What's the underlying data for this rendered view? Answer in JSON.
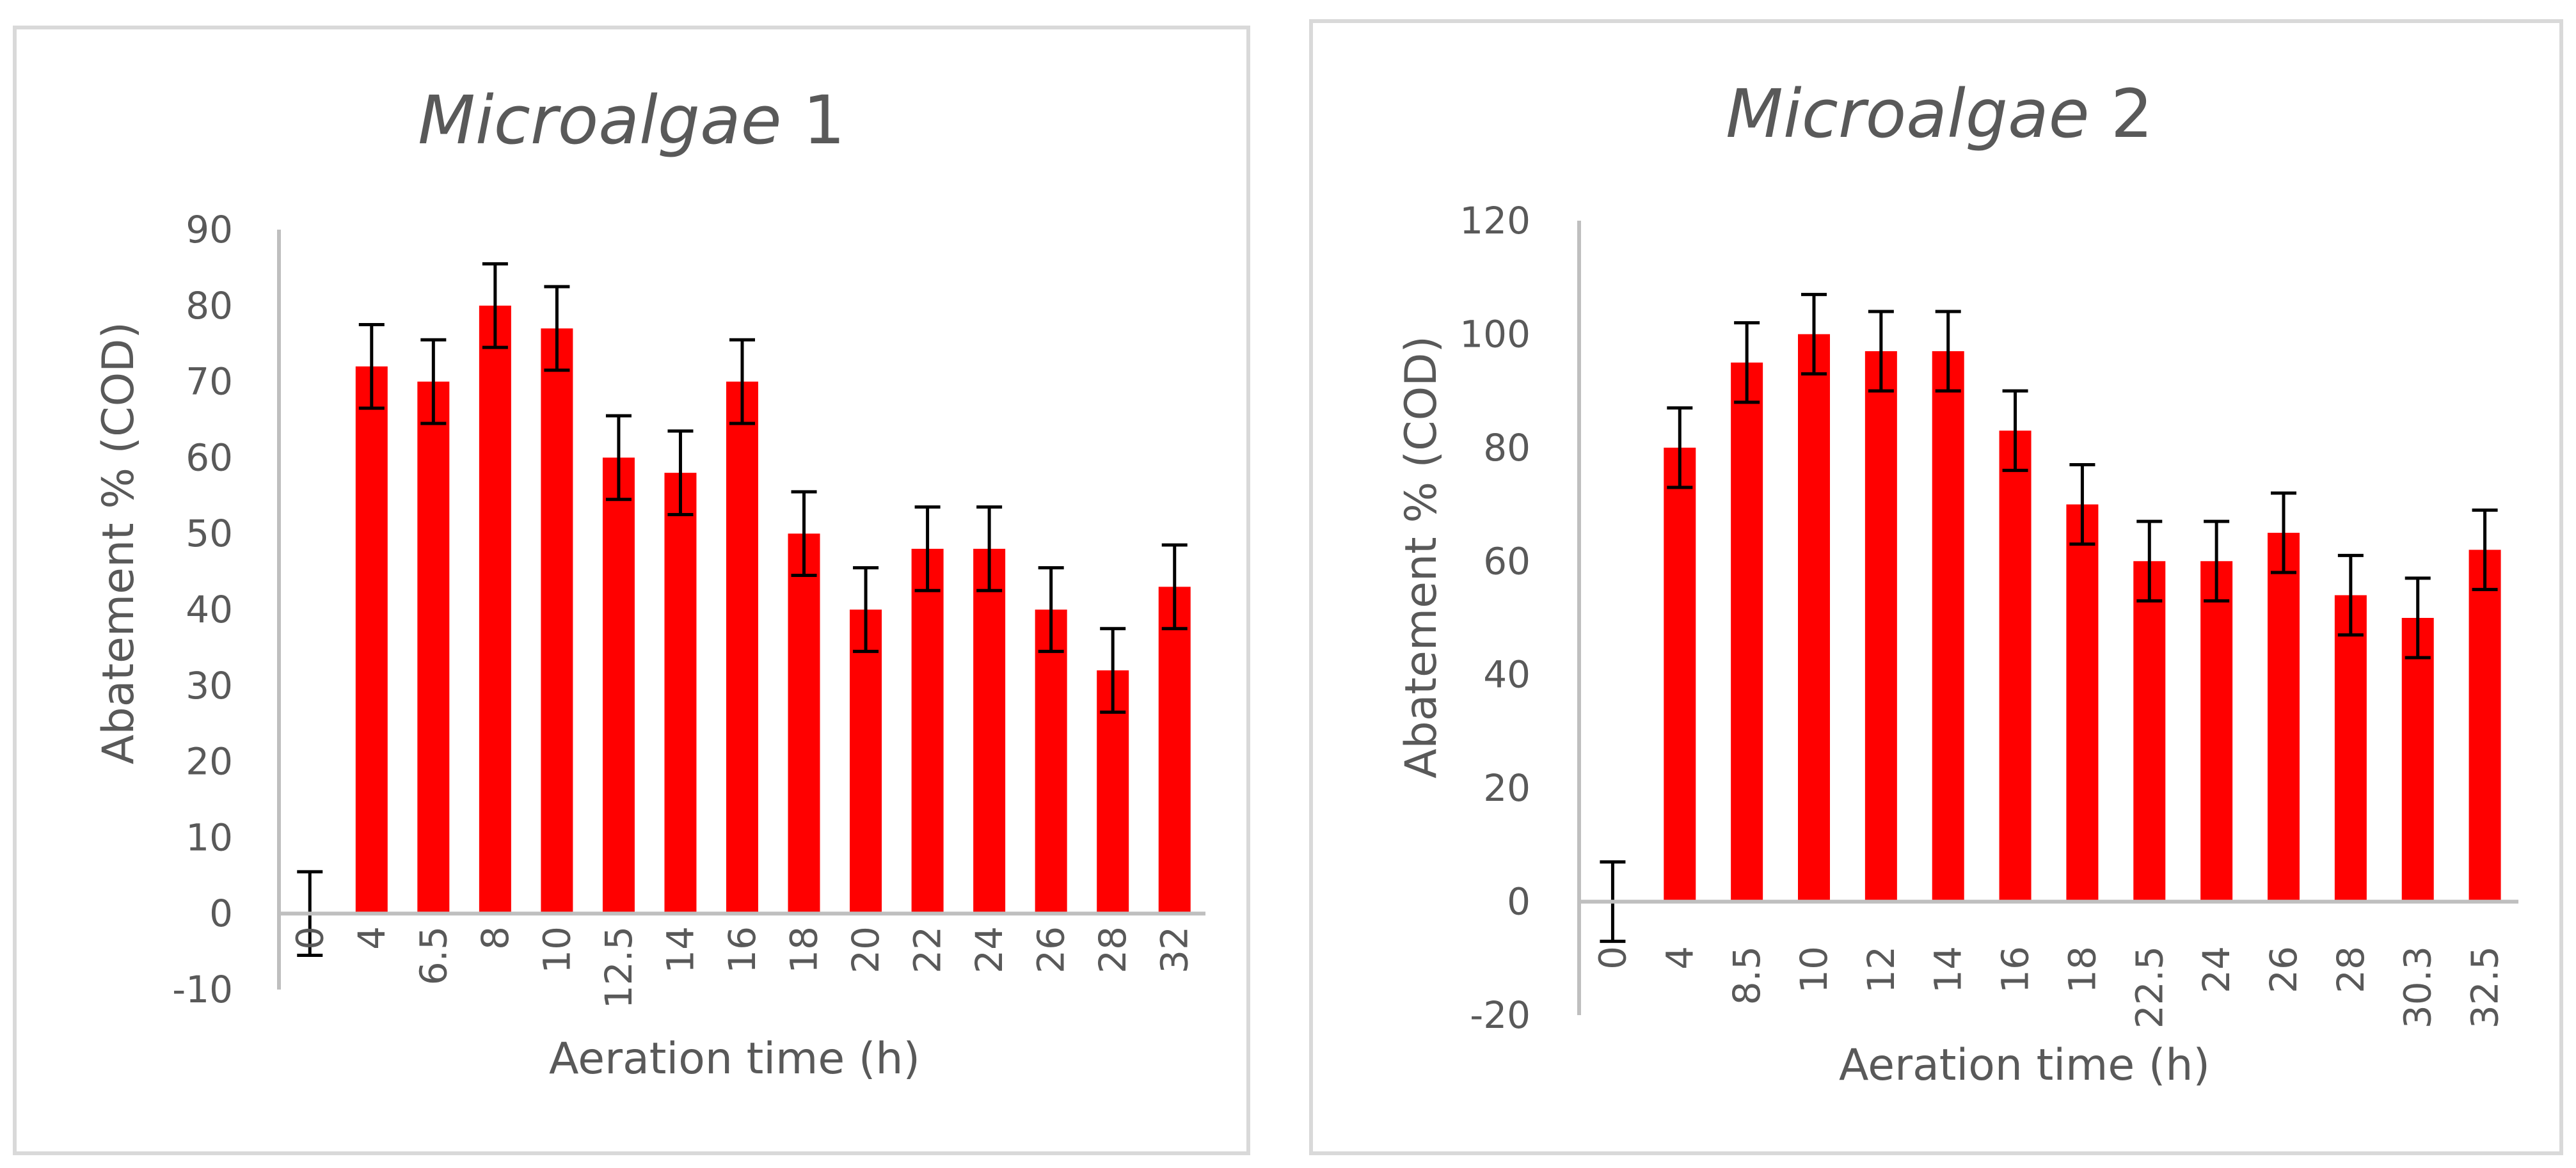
{
  "chart_data": [
    {
      "type": "bar",
      "title_italic": "Microalgae",
      "title_suffix": " 1",
      "xlabel": "Aeration time (h)",
      "ylabel": "Abatement % (COD)",
      "ylim": [
        -10,
        90
      ],
      "yticks": [
        -10,
        0,
        10,
        20,
        30,
        40,
        50,
        60,
        70,
        80,
        90
      ],
      "ytick_labels": [
        "-10",
        "0",
        "10",
        "20",
        "30",
        "40",
        "50",
        "60",
        "70",
        "80",
        "90"
      ],
      "categories": [
        "0",
        "4",
        "6.5",
        "8",
        "10",
        "12.5",
        "14",
        "16",
        "18",
        "20",
        "22",
        "24",
        "26",
        "28",
        "32"
      ],
      "values": [
        0,
        72,
        70,
        80,
        77,
        60,
        58,
        70,
        50,
        40,
        48,
        48,
        40,
        32,
        43
      ],
      "errors": [
        5.5,
        5.5,
        5.5,
        5.5,
        5.5,
        5.5,
        5.5,
        5.5,
        5.5,
        5.5,
        5.5,
        5.5,
        5.5,
        5.5,
        5.5
      ],
      "bar_color": "#ff0000",
      "error_color": "#000000",
      "legend": "none",
      "grid": false
    },
    {
      "type": "bar",
      "title_italic": "Microalgae",
      "title_suffix": " 2",
      "xlabel": "Aeration time (h)",
      "ylabel": "Abatement % (COD)",
      "ylim": [
        -20,
        120
      ],
      "yticks": [
        -20,
        0,
        20,
        40,
        60,
        80,
        100,
        120
      ],
      "ytick_labels": [
        "-20",
        "0",
        "20",
        "40",
        "60",
        "80",
        "100",
        "120"
      ],
      "categories": [
        "0",
        "4",
        "8.5",
        "10",
        "12",
        "14",
        "16",
        "18",
        "22.5",
        "24",
        "26",
        "28",
        "30.3",
        "32.5"
      ],
      "values": [
        0,
        80,
        95,
        100,
        97,
        97,
        83,
        70,
        60,
        60,
        65,
        54,
        50,
        62
      ],
      "errors": [
        7,
        7,
        7,
        7,
        7,
        7,
        7,
        7,
        7,
        7,
        7,
        7,
        7,
        7
      ],
      "bar_color": "#ff0000",
      "error_color": "#000000",
      "legend": "none",
      "grid": false
    }
  ]
}
